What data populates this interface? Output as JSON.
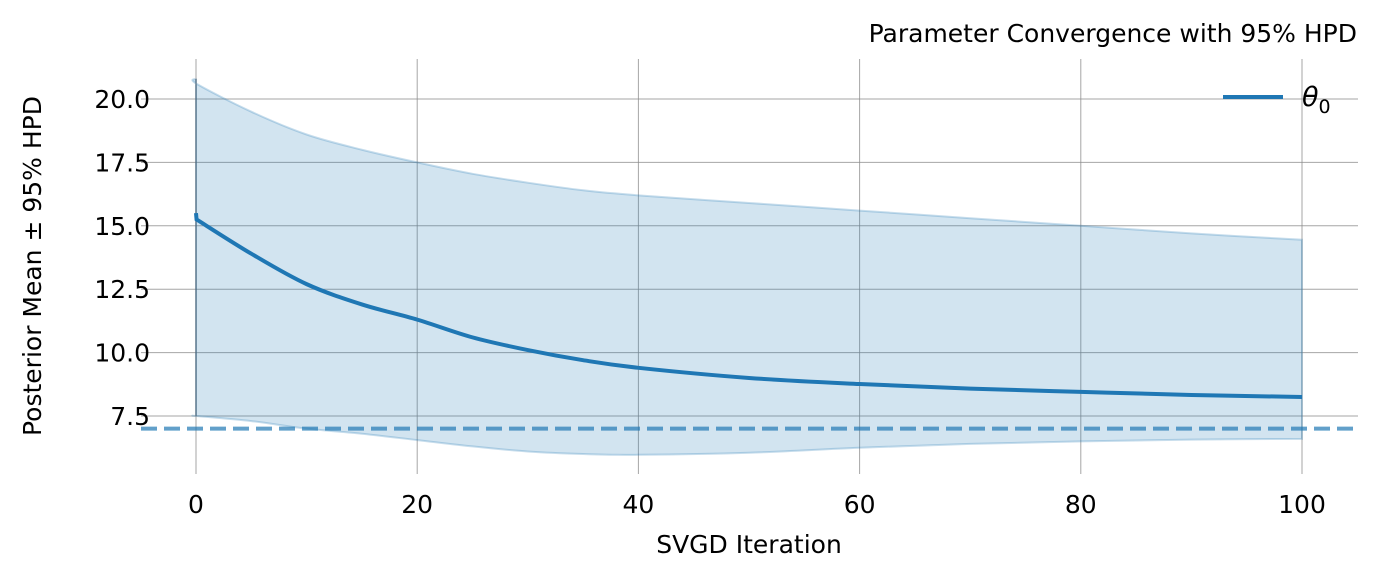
{
  "chart_data": {
    "type": "line",
    "title": "Parameter Convergence with 95% HPD",
    "xlabel": "SVGD Iteration",
    "ylabel": "Posterior Mean ± 95% HPD",
    "xlim": [
      -5,
      105
    ],
    "ylim": [
      5.2,
      21.6
    ],
    "xticks": [
      0,
      20,
      40,
      60,
      80,
      100
    ],
    "xtick_labels": [
      "0",
      "20",
      "40",
      "60",
      "80",
      "100"
    ],
    "yticks": [
      7.5,
      10.0,
      12.5,
      15.0,
      17.5,
      20.0
    ],
    "ytick_labels": [
      "7.5",
      "10.0",
      "12.5",
      "15.0",
      "17.5",
      "20.0"
    ],
    "grid": true,
    "legend": {
      "placement": "top-right",
      "label_main": "θ",
      "label_sub": "0"
    },
    "colors": {
      "line": "#1f77b4",
      "band": "#1f77b4",
      "reference": "#1f77b4",
      "grid": "#888888"
    },
    "reference_line": {
      "y": 7.0,
      "style": "dashed"
    },
    "series": [
      {
        "name": "θ0",
        "x": [
          0,
          0.05,
          5,
          10,
          15,
          20,
          25,
          30,
          35,
          40,
          50,
          60,
          70,
          80,
          90,
          100
        ],
        "mean": [
          15.5,
          15.25,
          13.9,
          12.7,
          11.9,
          11.3,
          10.6,
          10.1,
          9.7,
          9.4,
          9.0,
          8.76,
          8.58,
          8.45,
          8.33,
          8.25
        ],
        "upper": [
          20.8,
          20.6,
          19.5,
          18.6,
          18.0,
          17.5,
          17.05,
          16.7,
          16.4,
          16.2,
          15.9,
          15.6,
          15.3,
          15.0,
          14.7,
          14.45
        ],
        "lower": [
          7.5,
          7.5,
          7.3,
          7.0,
          6.8,
          6.55,
          6.3,
          6.1,
          6.0,
          5.97,
          6.05,
          6.25,
          6.4,
          6.5,
          6.57,
          6.6
        ]
      }
    ]
  }
}
